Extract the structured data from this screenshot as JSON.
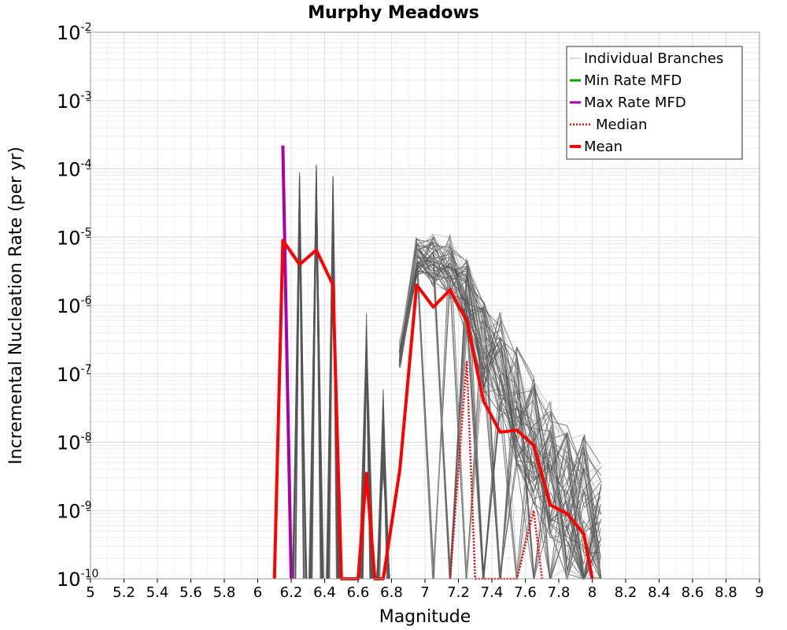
{
  "chart_data": {
    "type": "line",
    "title": "Murphy Meadows",
    "xlabel": "Magnitude",
    "ylabel": "Incremental Nucleation Rate (per yr)",
    "xlim": [
      5,
      9
    ],
    "ylim": [
      1e-10,
      0.01
    ],
    "yscale": "log",
    "grid": true,
    "legend_position": "top-right",
    "x_ticks": [
      5,
      5.2,
      5.4,
      5.6,
      5.8,
      6,
      6.2,
      6.4,
      6.6,
      6.8,
      7,
      7.2,
      7.4,
      7.6,
      7.8,
      8,
      8.2,
      8.4,
      8.6,
      8.8,
      9
    ],
    "x_tick_labels": [
      "5",
      "5.2",
      "5.4",
      "5.6",
      "5.8",
      "6",
      "6.2",
      "6.4",
      "6.6",
      "6.8",
      "7",
      "7.2",
      "7.4",
      "7.6",
      "7.8",
      "8",
      "8.2",
      "8.4",
      "8.6",
      "8.8",
      "9"
    ],
    "y_ticks": [
      {
        "base": "10",
        "exp": "-2",
        "value": 0.01
      },
      {
        "base": "10",
        "exp": "-3",
        "value": 0.001
      },
      {
        "base": "10",
        "exp": "-4",
        "value": 0.0001
      },
      {
        "base": "10",
        "exp": "-5",
        "value": 1e-05
      },
      {
        "base": "10",
        "exp": "-6",
        "value": 1e-06
      },
      {
        "base": "10",
        "exp": "-7",
        "value": 1e-07
      },
      {
        "base": "10",
        "exp": "-8",
        "value": 1e-08
      },
      {
        "base": "10",
        "exp": "-9",
        "value": 1e-09
      },
      {
        "base": "10",
        "exp": "-10",
        "value": 1e-10
      }
    ],
    "legend": [
      {
        "label": "Individual Branches",
        "color": "#bbbbbb",
        "style": "thin"
      },
      {
        "label": "Min Rate MFD",
        "color": "#00aa00",
        "style": "solid"
      },
      {
        "label": "Max Rate MFD",
        "color": "#aa00aa",
        "style": "solid"
      },
      {
        "label": "Median",
        "color": "#ff0000",
        "style": "dotted"
      },
      {
        "label": "Mean",
        "color": "#ff0000",
        "style": "thick"
      }
    ],
    "series": [
      {
        "name": "Max Rate MFD",
        "color": "#aa00aa",
        "x": [
          6.15,
          6.2
        ],
        "y": [
          0.00022,
          1e-10
        ]
      },
      {
        "name": "Mean",
        "color": "#ff0000",
        "x": [
          6.1,
          6.15,
          6.25,
          6.35,
          6.45,
          6.5,
          6.6,
          6.65,
          6.7,
          6.75,
          6.85,
          6.95,
          7.05,
          7.15,
          7.25,
          7.35,
          7.45,
          7.55,
          7.65,
          7.75,
          7.85,
          7.95,
          8.0
        ],
        "y": [
          1e-10,
          9e-06,
          4e-06,
          6.5e-06,
          2e-06,
          1e-10,
          1e-10,
          3.5e-09,
          1e-10,
          1e-10,
          4e-09,
          2e-06,
          9.5e-07,
          1.7e-06,
          6e-07,
          4e-08,
          1.4e-08,
          1.5e-08,
          9e-09,
          1.2e-09,
          9e-10,
          4.5e-10,
          1e-10
        ]
      },
      {
        "name": "Median",
        "color": "#ff0000",
        "x": [
          7.15,
          7.25,
          7.3,
          7.55,
          7.65,
          7.7
        ],
        "y": [
          1e-10,
          1.5e-07,
          1e-10,
          1e-10,
          1e-09,
          1e-10
        ]
      }
    ],
    "branches": {
      "spikes": [
        {
          "x": 6.25,
          "peak": 0.00015
        },
        {
          "x": 6.35,
          "peak": 0.00015
        },
        {
          "x": 6.45,
          "peak": 8e-05
        },
        {
          "x": 6.65,
          "peak": 1.5e-06
        },
        {
          "x": 6.75,
          "peak": 6e-08
        }
      ],
      "band": {
        "x": [
          6.85,
          6.95,
          7.05,
          7.15,
          7.25,
          7.35,
          7.45,
          7.55,
          7.65,
          7.75,
          7.85,
          7.95,
          8.05
        ],
        "upper": [
          3e-07,
          1e-05,
          1.1e-05,
          1.1e-05,
          5e-06,
          1.2e-06,
          8e-07,
          2.5e-07,
          1e-07,
          4.5e-08,
          2e-08,
          1.5e-08,
          5e-09
        ]
      }
    }
  }
}
